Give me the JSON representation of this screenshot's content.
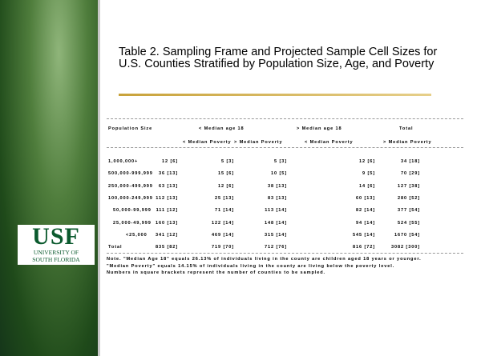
{
  "title": "Table 2. Sampling Frame and Projected Sample Cell Sizes for U.S. Counties Stratified by Population Size, Age, and Poverty",
  "table": {
    "header": [
      "Population Size",
      "< Median age 18",
      "> Median age 18",
      "Total"
    ],
    "subheader": [
      "< Median Poverty",
      "> Median Poverty",
      "< Median Poverty",
      "> Median Poverty"
    ],
    "rows": [
      [
        "1,000,000+",
        "12 [6]",
        "5 [3]",
        "5 [3]",
        "12 [6]",
        "34 [18]"
      ],
      [
        "500,000-999,999",
        "36 [13]",
        "15 [6]",
        "10 [5]",
        "9 [5]",
        "70 [29]"
      ],
      [
        "250,000-499,999",
        "63 [13]",
        "12 [6]",
        "38 [13]",
        "14 [6]",
        "127 [38]"
      ],
      [
        "100,000-249,999",
        "112 [13]",
        "25 [13]",
        "83 [13]",
        "60 [13]",
        "280 [52]"
      ],
      [
        "50,000-99,999",
        "111 [12]",
        "71 [14]",
        "113 [14]",
        "82 [14]",
        "377 [54]"
      ],
      [
        "25,000-49,999",
        "160 [13]",
        "122 [14]",
        "148 [14]",
        "94 [14]",
        "524 [55]"
      ],
      [
        "<25,000",
        "341 [12]",
        "469 [14]",
        "315 [14]",
        "545 [14]",
        "1670 [54]"
      ],
      [
        "Total",
        "835 [82]",
        "719 [70]",
        "712 [76]",
        "816 [72]",
        "3082 [300]"
      ]
    ],
    "note": [
      "Note. \"Median Age 18\" equals 26.13% of individuals living in the county are children aged 18 years or younger.",
      "\"Median Poverty\" equals 14.15% of individuals living in the county are living below the poverty level.",
      "Numbers in square brackets represent the number of counties to be sampled."
    ]
  },
  "logo": {
    "mark": "USF",
    "line1": "UNIVERSITY OF",
    "line2": "SOUTH FLORIDA"
  }
}
